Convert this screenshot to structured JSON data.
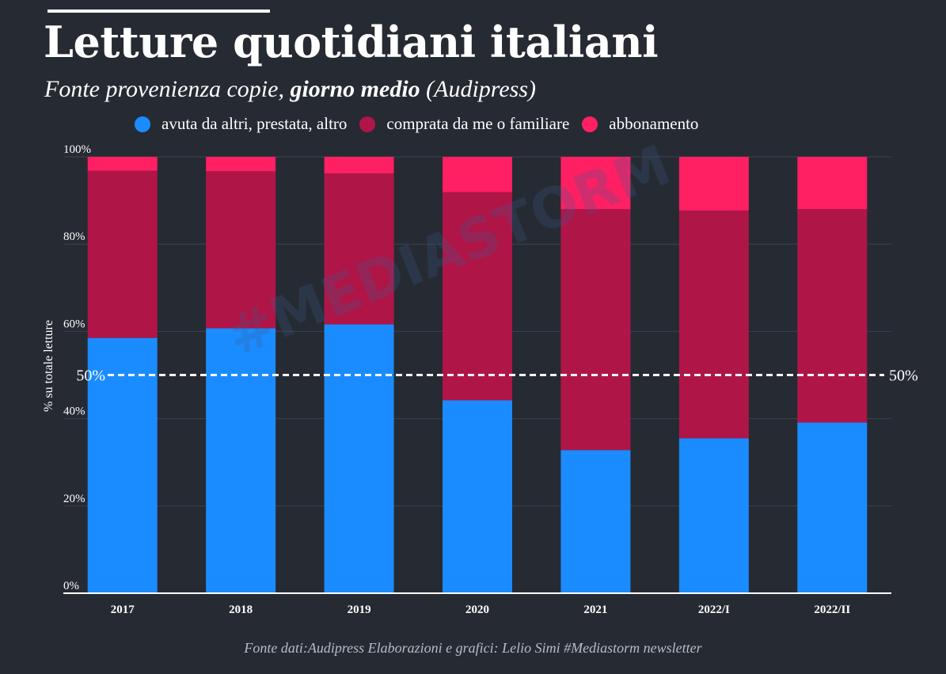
{
  "header": {
    "title": "Letture quotidiani italiani",
    "subtitle_pre": "Fonte provenienza copie, ",
    "subtitle_bold": "giorno medio",
    "subtitle_post": " (Audipress)"
  },
  "footer": {
    "source": "Fonte dati:Audipress Elaborazioni e grafici: Lelio Simi  #Mediastorm newsletter"
  },
  "watermark": {
    "text": "#MEDIASTORM"
  },
  "chart_data": {
    "type": "bar",
    "stacked": true,
    "categories": [
      "2017",
      "2018",
      "2019",
      "2020",
      "2021",
      "2022/I",
      "2022/II"
    ],
    "series": [
      {
        "name": "avuta da altri, prestata, altro",
        "color": "#1a8cff",
        "values": [
          58.5,
          60.7,
          61.6,
          44.2,
          32.8,
          35.5,
          39.1
        ]
      },
      {
        "name": "comprata da me o familiare",
        "color": "#b01548",
        "values": [
          38.3,
          36.0,
          34.6,
          47.7,
          55.2,
          52.2,
          48.9
        ]
      },
      {
        "name": "abbonamento",
        "color": "#ff1f63",
        "values": [
          3.2,
          3.3,
          3.8,
          8.1,
          12.0,
          12.3,
          12.0
        ]
      }
    ],
    "ylabel": "% su totale letture",
    "ylim": [
      0,
      100
    ],
    "yticks": [
      "0%",
      "20%",
      "40%",
      "60%",
      "80%",
      "100%"
    ],
    "ytick_values": [
      0,
      20,
      40,
      60,
      80,
      100
    ],
    "reference_line": {
      "value": 50,
      "label_left": "50%",
      "label_right": "50%"
    },
    "legend": "top",
    "grid": true
  }
}
